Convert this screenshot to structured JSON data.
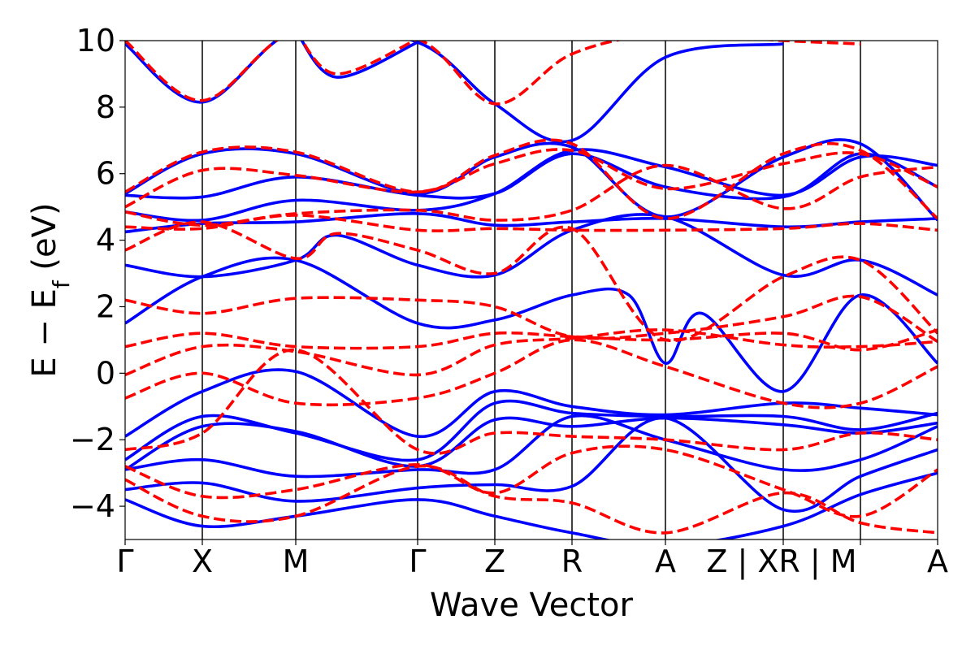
{
  "chart_data": {
    "type": "line",
    "xlabel": "Wave Vector",
    "ylabel": "E − E",
    "ylabel_sub": "f",
    "ylabel_unit": " (eV)",
    "ylim": [
      -5,
      10
    ],
    "yticks": [
      {
        "value": -4,
        "label": "−4"
      },
      {
        "value": -2,
        "label": "−2"
      },
      {
        "value": 0,
        "label": "0"
      },
      {
        "value": 2,
        "label": "2"
      },
      {
        "value": 4,
        "label": "4"
      },
      {
        "value": 6,
        "label": "6"
      },
      {
        "value": 8,
        "label": "8"
      },
      {
        "value": 10,
        "label": "10"
      }
    ],
    "xlim": [
      0,
      10
    ],
    "kpoints": [
      {
        "pos": 0,
        "label": "Γ"
      },
      {
        "pos": 0.95,
        "label": "X"
      },
      {
        "pos": 2.1,
        "label": "M"
      },
      {
        "pos": 3.6,
        "label": "Γ"
      },
      {
        "pos": 4.55,
        "label": "Z"
      },
      {
        "pos": 5.5,
        "label": "R"
      },
      {
        "pos": 6.65,
        "label": "A"
      },
      {
        "pos": 8.1,
        "label": "Z | XR | M"
      },
      {
        "pos": 9.05,
        "label": ""
      },
      {
        "pos": 10,
        "label": "A"
      }
    ],
    "kpoint_label_positions": [
      0,
      0.95,
      2.1,
      3.6,
      4.55,
      5.5,
      6.65,
      8.08,
      9.05,
      10
    ],
    "kpoint_label_text": [
      "Γ",
      "X",
      "M",
      "Γ",
      "Z",
      "R",
      "A",
      "Z | XR | M",
      "",
      "A"
    ],
    "vlines": [
      0.95,
      2.1,
      3.6,
      4.55,
      5.5,
      6.65,
      8.1,
      9.05
    ],
    "colors": {
      "series_blue": "#0000ff",
      "series_red": "#ff0000"
    },
    "series": [
      {
        "style": "solid",
        "color": "#0000ff",
        "bands": [
          {
            "x": [
              0,
              0.95,
              2.1,
              3.6,
              4.55,
              5.5,
              6.65,
              8.1
            ],
            "y": [
              9.9,
              8.15,
              10.3,
              9.95,
              8.1,
              7.0,
              9.5,
              9.9
            ]
          },
          {
            "x": [
              2.1,
              2.6,
              3.6
            ],
            "y": [
              10.3,
              8.9,
              9.95
            ]
          },
          {
            "x": [
              0,
              0.95,
              2.1,
              3.6,
              4.55,
              5.5,
              6.65,
              8.1,
              9.05,
              10
            ],
            "y": [
              5.4,
              6.6,
              6.6,
              5.4,
              6.5,
              6.8,
              4.7,
              6.5,
              6.9,
              4.6
            ]
          },
          {
            "x": [
              0,
              0.95,
              2.1,
              3.6,
              4.55,
              5.5,
              6.65,
              8.1,
              9.05,
              10
            ],
            "y": [
              5.35,
              5.3,
              5.9,
              5.35,
              5.4,
              6.6,
              5.6,
              5.3,
              6.6,
              5.6
            ]
          },
          {
            "x": [
              0,
              0.95,
              2.1,
              3.6,
              4.55,
              5.5,
              6.65,
              8.1,
              9.05,
              10
            ],
            "y": [
              4.85,
              4.6,
              5.2,
              4.9,
              5.4,
              6.7,
              6.2,
              5.35,
              6.5,
              6.25
            ]
          },
          {
            "x": [
              0,
              0.95,
              2.1,
              3.6,
              4.55,
              5.5,
              6.65,
              8.1,
              9.05,
              10
            ],
            "y": [
              4.25,
              4.5,
              4.55,
              4.8,
              4.45,
              4.55,
              4.65,
              4.4,
              4.55,
              4.65
            ]
          },
          {
            "x": [
              0,
              0.95,
              2.1,
              2.6,
              3.6,
              4.55,
              5.5,
              6.65,
              8.1,
              9.05,
              10
            ],
            "y": [
              3.25,
              2.9,
              3.4,
              4.15,
              3.25,
              2.95,
              4.3,
              4.7,
              2.95,
              3.4,
              2.35
            ]
          },
          {
            "x": [
              0,
              0.95,
              2.1,
              3.6,
              4.55,
              5.5,
              6.2,
              6.65,
              7.1,
              8.1,
              9.05,
              10
            ],
            "y": [
              1.5,
              2.9,
              3.4,
              1.5,
              1.6,
              2.35,
              2.35,
              0.3,
              1.8,
              -0.55,
              2.35,
              0.3
            ]
          },
          {
            "x": [
              0,
              0.95,
              2.1,
              3.6,
              4.55,
              5.5,
              6.65,
              8.1,
              9.05,
              10
            ],
            "y": [
              -1.9,
              -0.55,
              0.05,
              -1.9,
              -0.55,
              -1.0,
              -1.25,
              -0.9,
              -1.05,
              -1.25
            ]
          },
          {
            "x": [
              0,
              0.95,
              2.1,
              3.6,
              4.55,
              5.5,
              6.65,
              8.1,
              9.05,
              10
            ],
            "y": [
              -2.6,
              -1.3,
              -1.8,
              -2.6,
              -0.9,
              -1.2,
              -1.3,
              -1.3,
              -1.7,
              -1.2
            ]
          },
          {
            "x": [
              0,
              0.95,
              2.1,
              3.6,
              4.55,
              5.5,
              6.65,
              8.1,
              9.05,
              10
            ],
            "y": [
              -2.9,
              -1.6,
              -1.75,
              -2.8,
              -1.4,
              -1.6,
              -1.35,
              -1.55,
              -1.8,
              -1.5
            ]
          },
          {
            "x": [
              0,
              0.95,
              2.1,
              3.6,
              4.55,
              5.5,
              6.65,
              8.1,
              9.05,
              10
            ],
            "y": [
              -2.9,
              -2.6,
              -3.1,
              -2.9,
              -2.9,
              -1.3,
              -2.0,
              -2.9,
              -2.6,
              -1.6
            ]
          },
          {
            "x": [
              0,
              0.95,
              2.1,
              3.6,
              4.55,
              5.5,
              6.65,
              8.1,
              9.05,
              10
            ],
            "y": [
              -3.5,
              -3.3,
              -3.85,
              -3.45,
              -3.35,
              -3.4,
              -1.35,
              -4.1,
              -3.1,
              -2.3
            ]
          },
          {
            "x": [
              0,
              0.95,
              2.1,
              3.6,
              4.55,
              5.5,
              6.65,
              8.1,
              9.05,
              10
            ],
            "y": [
              -3.8,
              -4.6,
              -4.3,
              -3.8,
              -4.3,
              -4.8,
              -5.2,
              -4.6,
              -3.65,
              -3.0
            ]
          }
        ]
      },
      {
        "style": "dashed",
        "color": "#ff0000",
        "bands": [
          {
            "x": [
              0,
              0.95,
              2.1,
              3.6,
              4.55,
              5.5,
              6.65,
              8.1,
              9.05
            ],
            "y": [
              10.0,
              8.2,
              10.3,
              10.05,
              8.1,
              9.6,
              10.2,
              10.0,
              9.9
            ]
          },
          {
            "x": [
              2.1,
              2.6,
              3.6
            ],
            "y": [
              10.3,
              9.0,
              10.05
            ]
          },
          {
            "x": [
              0,
              0.95,
              2.1,
              3.6,
              4.55,
              5.5,
              6.65,
              8.1,
              9.05,
              10
            ],
            "y": [
              5.45,
              6.65,
              6.65,
              5.45,
              6.55,
              6.9,
              4.65,
              6.6,
              6.7,
              4.65
            ]
          },
          {
            "x": [
              0,
              0.95,
              2.1,
              3.6,
              4.55,
              5.5,
              6.65,
              8.1,
              9.05,
              10
            ],
            "y": [
              5.0,
              6.1,
              5.95,
              5.45,
              6.3,
              6.7,
              5.55,
              6.3,
              6.6,
              5.6
            ]
          },
          {
            "x": [
              0,
              0.95,
              2.1,
              3.6,
              4.55,
              5.5,
              6.65,
              8.1,
              9.05,
              10
            ],
            "y": [
              4.85,
              4.45,
              4.8,
              4.9,
              4.6,
              4.9,
              6.25,
              4.95,
              5.9,
              6.2
            ]
          },
          {
            "x": [
              0,
              0.95,
              2.1,
              3.6,
              4.55,
              5.5,
              6.65,
              8.1,
              9.05,
              10
            ],
            "y": [
              4.4,
              4.35,
              4.75,
              4.3,
              4.35,
              4.3,
              4.3,
              4.35,
              4.5,
              4.3
            ]
          },
          {
            "x": [
              0,
              0.95,
              2.1,
              2.6,
              3.6,
              4.55,
              5.5,
              6.65,
              8.1,
              9.05,
              10
            ],
            "y": [
              3.7,
              4.55,
              3.45,
              4.2,
              3.7,
              3.0,
              4.35,
              1.0,
              2.9,
              3.4,
              1.2
            ]
          },
          {
            "x": [
              0,
              0.95,
              2.1,
              3.6,
              4.55,
              5.5,
              6.65,
              8.1,
              9.05,
              10
            ],
            "y": [
              2.2,
              1.8,
              2.25,
              2.2,
              2.0,
              1.1,
              1.2,
              1.7,
              2.3,
              0.95
            ]
          },
          {
            "x": [
              0,
              0.95,
              2.1,
              3.6,
              4.55,
              5.5,
              6.65,
              8.1,
              9.05,
              10
            ],
            "y": [
              0.8,
              1.2,
              0.8,
              0.8,
              1.2,
              1.1,
              1.0,
              1.2,
              0.7,
              1.3
            ]
          },
          {
            "x": [
              0,
              0.95,
              2.1,
              3.6,
              4.55,
              5.5,
              6.65,
              8.1,
              9.05,
              10
            ],
            "y": [
              -0.05,
              0.8,
              0.65,
              -0.05,
              0.85,
              1.05,
              1.3,
              0.85,
              0.8,
              0.95
            ]
          },
          {
            "x": [
              0,
              0.95,
              2.1,
              3.6,
              4.55,
              5.5,
              6.65,
              8.1,
              9.05,
              10
            ],
            "y": [
              -0.75,
              0.0,
              -0.9,
              -0.75,
              0.0,
              1.0,
              0.2,
              -0.9,
              -0.9,
              0.2
            ]
          },
          {
            "x": [
              0,
              0.95,
              2.1,
              3.6,
              4.55,
              5.5,
              6.65,
              8.1,
              9.05,
              10
            ],
            "y": [
              -2.3,
              -1.8,
              0.7,
              -2.3,
              -1.8,
              -1.9,
              -2.0,
              -2.3,
              -1.8,
              -2.0
            ]
          },
          {
            "x": [
              0,
              0.95,
              2.1,
              3.6,
              4.55,
              5.5,
              6.65,
              8.1,
              9.05,
              10
            ],
            "y": [
              -2.8,
              -3.7,
              -3.5,
              -2.75,
              -3.6,
              -2.4,
              -2.3,
              -3.5,
              -4.3,
              -2.9
            ]
          },
          {
            "x": [
              0,
              0.95,
              2.1,
              3.6,
              4.55,
              5.5,
              6.65,
              8.1,
              9.05,
              10
            ],
            "y": [
              -3.2,
              -4.3,
              -4.3,
              -2.8,
              -3.7,
              -3.9,
              -4.8,
              -3.6,
              -4.5,
              -4.8
            ]
          }
        ]
      }
    ]
  }
}
